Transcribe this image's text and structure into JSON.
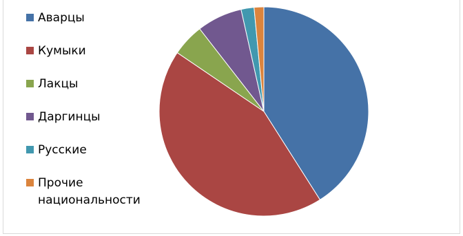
{
  "chart_data": {
    "type": "pie",
    "start_angle_deg": 0,
    "direction": "clockwise",
    "legend_position": "left",
    "slices": [
      {
        "label": "Аварцы",
        "value": 41.0,
        "color": "#4572A7"
      },
      {
        "label": "Кумыки",
        "value": 43.5,
        "color": "#AA4643"
      },
      {
        "label": "Лакцы",
        "value": 5.0,
        "color": "#89A54E"
      },
      {
        "label": "Даргинцы",
        "value": 7.0,
        "color": "#71588F"
      },
      {
        "label": "Русские",
        "value": 2.0,
        "color": "#4198AF"
      },
      {
        "label": "Прочие национальности",
        "value": 1.5,
        "color": "#DB843D"
      }
    ]
  }
}
